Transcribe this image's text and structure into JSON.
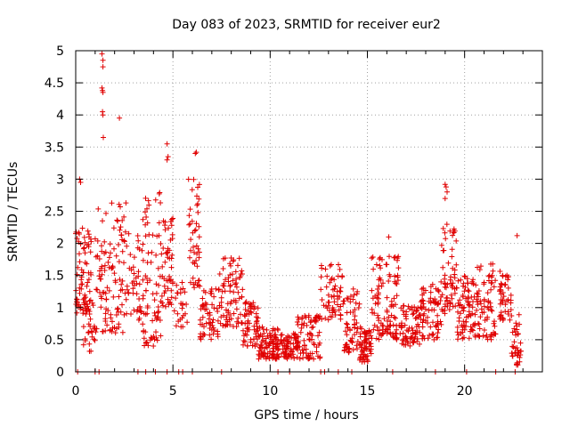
{
  "chart_data": {
    "type": "scatter",
    "title": "Day 083 of 2023, SRMTID for receiver eur2",
    "xlabel": "GPS time / hours",
    "ylabel": "SRMTID / TECUs",
    "xlim": [
      0,
      24
    ],
    "ylim": [
      0,
      5
    ],
    "grid": true,
    "marker": "+",
    "color": "#e00000",
    "x_ticks": [
      0,
      5,
      10,
      15,
      20
    ],
    "x_tick_labels": [
      "0",
      "5",
      "10",
      "15",
      "20"
    ],
    "y_ticks": [
      0,
      0.5,
      1,
      1.5,
      2,
      2.5,
      3,
      3.5,
      4,
      4.5,
      5
    ],
    "y_tick_labels": [
      "0",
      "0.5",
      "1",
      "1.5",
      "2",
      "2.5",
      "3",
      "3.5",
      "4",
      "4.5",
      "5"
    ],
    "zero_points_x": [
      0.1,
      1.0,
      1.2,
      3.2,
      3.6,
      4.1,
      4.7,
      5.3,
      5.5,
      6.0,
      7.5,
      10.4,
      11.0,
      12.6,
      12.8,
      13.5,
      14.2,
      16.3,
      18.5,
      20.1,
      21.6,
      22.6
    ],
    "outliers": [
      {
        "x": 1.35,
        "y": 4.95
      },
      {
        "x": 1.4,
        "y": 4.85
      },
      {
        "x": 1.4,
        "y": 4.75
      },
      {
        "x": 1.35,
        "y": 4.42
      },
      {
        "x": 1.38,
        "y": 4.38
      },
      {
        "x": 1.4,
        "y": 4.35
      },
      {
        "x": 1.38,
        "y": 4.05
      },
      {
        "x": 1.4,
        "y": 4.0
      },
      {
        "x": 1.42,
        "y": 3.65
      },
      {
        "x": 2.25,
        "y": 3.95
      },
      {
        "x": 4.7,
        "y": 3.55
      },
      {
        "x": 4.75,
        "y": 3.35
      },
      {
        "x": 4.7,
        "y": 3.3
      },
      {
        "x": 6.2,
        "y": 3.42
      },
      {
        "x": 6.15,
        "y": 3.4
      },
      {
        "x": 0.2,
        "y": 3.0
      },
      {
        "x": 0.25,
        "y": 2.95
      },
      {
        "x": 19.0,
        "y": 2.92
      },
      {
        "x": 19.05,
        "y": 2.88
      },
      {
        "x": 19.1,
        "y": 2.8
      },
      {
        "x": 19.0,
        "y": 2.7
      },
      {
        "x": 16.1,
        "y": 2.1
      },
      {
        "x": 22.7,
        "y": 2.12
      }
    ],
    "activity_bands": [
      {
        "x0": 0.0,
        "x1": 0.8,
        "lo": 0.9,
        "hi": 2.3,
        "n": 70
      },
      {
        "x0": 0.4,
        "x1": 1.0,
        "lo": 0.3,
        "hi": 1.2,
        "n": 30
      },
      {
        "x0": 1.0,
        "x1": 2.6,
        "lo": 0.6,
        "hi": 2.7,
        "n": 110
      },
      {
        "x0": 2.6,
        "x1": 3.4,
        "lo": 0.8,
        "hi": 2.2,
        "n": 40
      },
      {
        "x0": 3.4,
        "x1": 4.4,
        "lo": 0.4,
        "hi": 2.8,
        "n": 80
      },
      {
        "x0": 4.4,
        "x1": 5.0,
        "lo": 1.0,
        "hi": 2.4,
        "n": 50
      },
      {
        "x0": 5.0,
        "x1": 5.8,
        "lo": 0.7,
        "hi": 1.4,
        "n": 25
      },
      {
        "x0": 5.8,
        "x1": 6.4,
        "lo": 1.3,
        "hi": 3.0,
        "n": 45
      },
      {
        "x0": 6.4,
        "x1": 7.4,
        "lo": 0.5,
        "hi": 1.3,
        "n": 60
      },
      {
        "x0": 7.4,
        "x1": 8.6,
        "lo": 0.7,
        "hi": 1.8,
        "n": 80
      },
      {
        "x0": 8.6,
        "x1": 9.4,
        "lo": 0.4,
        "hi": 1.1,
        "n": 60
      },
      {
        "x0": 9.4,
        "x1": 10.4,
        "lo": 0.2,
        "hi": 0.7,
        "n": 90
      },
      {
        "x0": 10.4,
        "x1": 11.4,
        "lo": 0.2,
        "hi": 0.6,
        "n": 70
      },
      {
        "x0": 11.4,
        "x1": 12.6,
        "lo": 0.2,
        "hi": 0.9,
        "n": 80
      },
      {
        "x0": 12.6,
        "x1": 13.8,
        "lo": 0.8,
        "hi": 1.7,
        "n": 60
      },
      {
        "x0": 13.8,
        "x1": 14.6,
        "lo": 0.3,
        "hi": 1.3,
        "n": 60
      },
      {
        "x0": 14.6,
        "x1": 15.2,
        "lo": 0.15,
        "hi": 0.7,
        "n": 60
      },
      {
        "x0": 15.2,
        "x1": 16.6,
        "lo": 0.5,
        "hi": 1.8,
        "n": 110
      },
      {
        "x0": 16.6,
        "x1": 17.8,
        "lo": 0.4,
        "hi": 1.1,
        "n": 80
      },
      {
        "x0": 17.8,
        "x1": 18.8,
        "lo": 0.5,
        "hi": 1.4,
        "n": 70
      },
      {
        "x0": 18.8,
        "x1": 19.6,
        "lo": 0.9,
        "hi": 2.3,
        "n": 60
      },
      {
        "x0": 19.6,
        "x1": 20.6,
        "lo": 0.5,
        "hi": 1.5,
        "n": 80
      },
      {
        "x0": 20.6,
        "x1": 21.6,
        "lo": 0.5,
        "hi": 1.7,
        "n": 70
      },
      {
        "x0": 21.8,
        "x1": 22.4,
        "lo": 0.8,
        "hi": 1.6,
        "n": 45
      },
      {
        "x0": 22.4,
        "x1": 22.9,
        "lo": 0.1,
        "hi": 0.9,
        "n": 40
      }
    ]
  }
}
